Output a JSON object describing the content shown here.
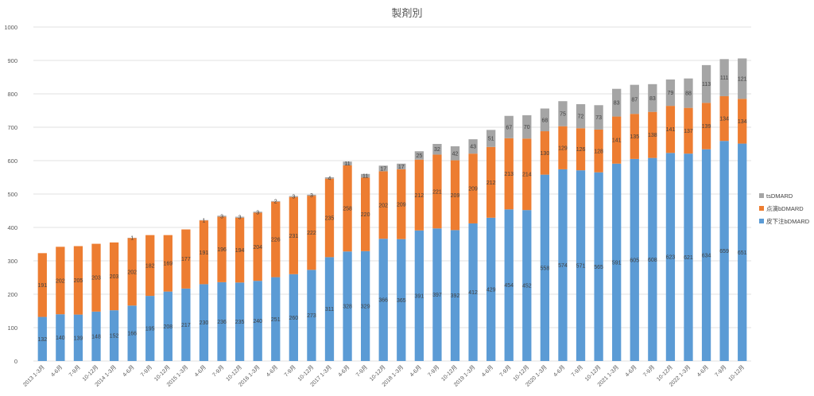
{
  "chart_data": {
    "type": "bar",
    "stacked": true,
    "title": "製剤別",
    "ylim": [
      0,
      1000
    ],
    "yticks": [
      0,
      100,
      200,
      300,
      400,
      500,
      600,
      700,
      800,
      900,
      1000
    ],
    "grid": true,
    "legend_position": "right",
    "categories": [
      "2013 1-3月",
      "4-6月",
      "7-9月",
      "10-12月",
      "2014 1-3月",
      "4-6月",
      "7-9月",
      "10-12月",
      "2015 1-3月",
      "4-6月",
      "7-9月",
      "10-12月",
      "2016 1-3月",
      "4-6月",
      "7-9月",
      "10-12月",
      "2017 1-3月",
      "4-6月",
      "7-9月",
      "10-12月",
      "2018 1-3月",
      "4-6月",
      "7-9月",
      "10-12月",
      "2019 1-3月",
      "4-6月",
      "7-9月",
      "10-12月",
      "2020 1-3月",
      "4-6月",
      "7-9月",
      "10-12月",
      "2021 1-3月",
      "4-6月",
      "7-9月",
      "10-12月",
      "2022 1-3月",
      "4-6月",
      "7-9月",
      "10-12月"
    ],
    "series": [
      {
        "name": "皮下注bDMARD",
        "color": "#5b9bd5",
        "values": [
          132,
          140,
          139,
          148,
          152,
          166,
          195,
          208,
          217,
          230,
          236,
          235,
          240,
          251,
          260,
          273,
          311,
          328,
          329,
          366,
          365,
          391,
          397,
          392,
          412,
          429,
          454,
          452,
          558,
          574,
          571,
          565,
          591,
          605,
          608,
          623,
          621,
          634,
          659,
          651
        ]
      },
      {
        "name": "点滴bDMARD",
        "color": "#ed7d31",
        "values": [
          191,
          202,
          205,
          203,
          203,
          202,
          182,
          169,
          177,
          191,
          196,
          194,
          204,
          226,
          231,
          222,
          235,
          258,
          220,
          202,
          209,
          212,
          221,
          209,
          209,
          212,
          213,
          214,
          130,
          129,
          126,
          128,
          141,
          135,
          138,
          141,
          137,
          139,
          134,
          134
        ]
      },
      {
        "name": "tsDMARD",
        "color": "#a5a5a5",
        "values": [
          0,
          0,
          0,
          0,
          0,
          1,
          0,
          0,
          0,
          1,
          3,
          3,
          3,
          2,
          3,
          3,
          4,
          11,
          11,
          17,
          17,
          25,
          32,
          42,
          43,
          51,
          67,
          70,
          68,
          75,
          72,
          73,
          83,
          87,
          83,
          79,
          88,
          113,
          111,
          121
        ]
      }
    ]
  }
}
